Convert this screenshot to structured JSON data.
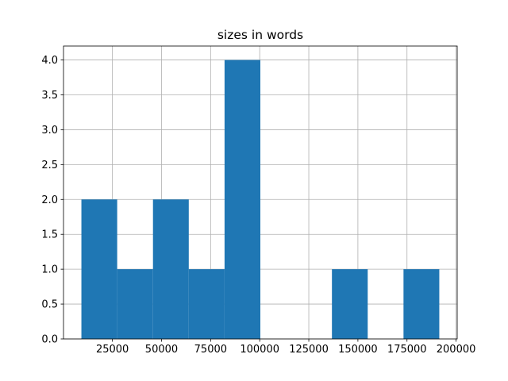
{
  "chart_data": {
    "type": "histogram",
    "title": "sizes in words",
    "bins": [
      9200,
      27425,
      45650,
      63875,
      82100,
      100325,
      118550,
      136775,
      155000,
      173225,
      191450
    ],
    "values": [
      2,
      1,
      2,
      1,
      4,
      0,
      0,
      1,
      0,
      1
    ],
    "color": "#1f77b4",
    "xlim": [
      87,
      200568
    ],
    "xticks": [
      25000,
      50000,
      75000,
      100000,
      125000,
      150000,
      175000,
      200000
    ],
    "ylim": [
      0,
      4.2
    ],
    "yticks": [
      {
        "value": 0,
        "label": "0.0"
      },
      0.5,
      {
        "value": 1,
        "label": "1.0"
      },
      1.5,
      {
        "value": 2,
        "label": "2.0"
      },
      2.5,
      {
        "value": 3,
        "label": "3.0"
      },
      3.5,
      {
        "value": 4,
        "label": "4.0"
      }
    ],
    "grid": true
  }
}
